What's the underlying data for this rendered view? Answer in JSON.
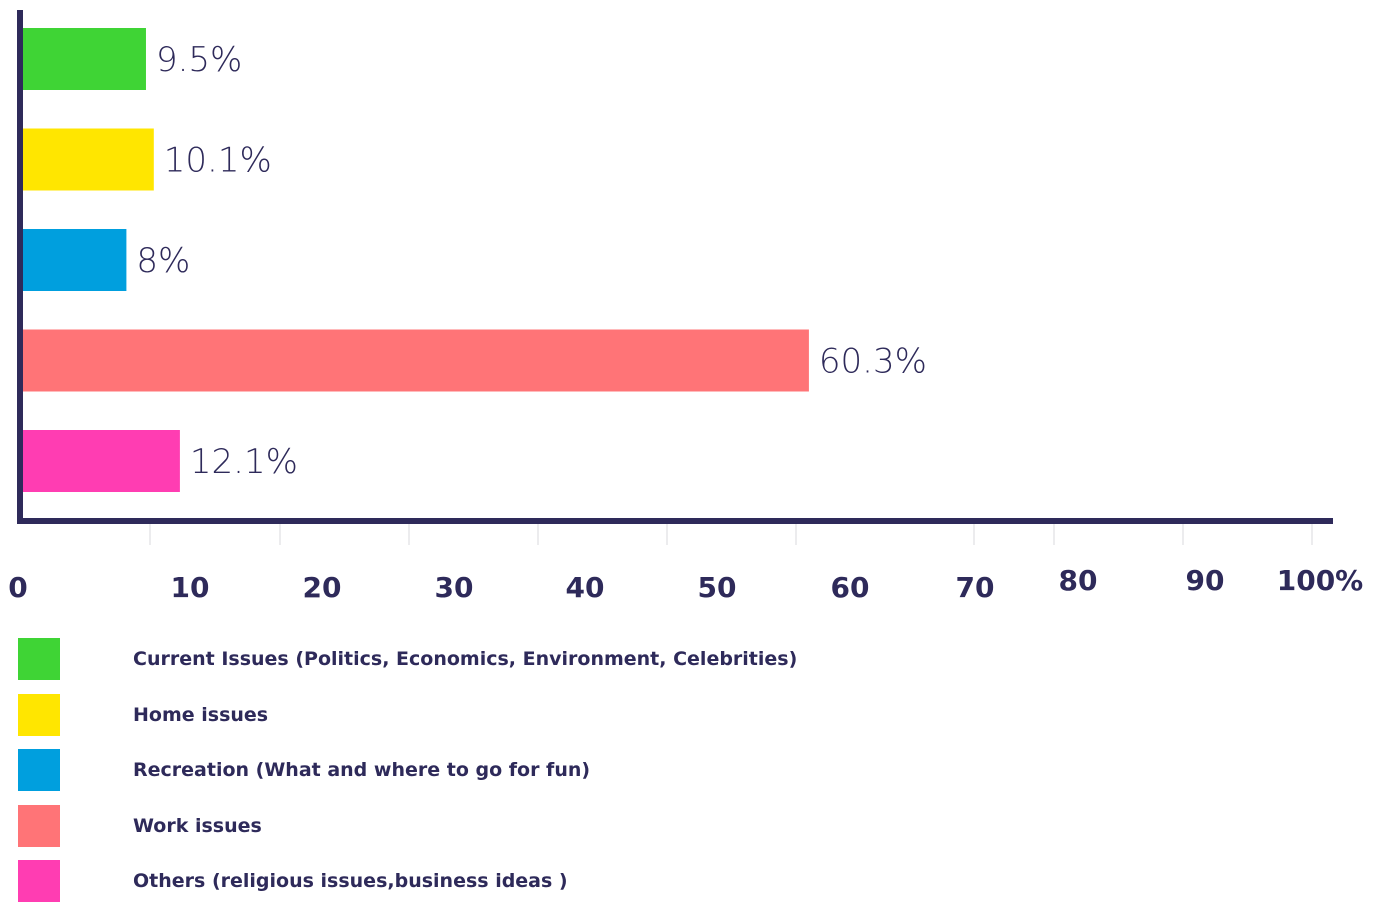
{
  "chart_data": {
    "type": "bar",
    "orientation": "horizontal",
    "categories": [
      "Current Issues (Politics, Economics, Environment, Celebrities)",
      "Home issues",
      "Recreation (What and where to go for fun)",
      "Work issues",
      "Others (religious issues,business ideas )"
    ],
    "values": [
      9.5,
      10.1,
      8,
      60.3,
      12.1
    ],
    "value_labels": [
      "9.5%",
      "10.1%",
      "8%",
      "60.3%",
      "12.1%"
    ],
    "colors": [
      "#3fd435",
      "#ffe600",
      "#009fde",
      "#ff7477",
      "#ff3db2"
    ],
    "xlim": [
      0,
      100
    ],
    "x_ticks": [
      "0",
      "10",
      "20",
      "30",
      "40",
      "50",
      "60",
      "70",
      "80",
      "90",
      "100%"
    ],
    "title": "",
    "xlabel": "",
    "ylabel": "",
    "legend_position": "bottom-left",
    "grid": false
  },
  "colors": {
    "axis": "#2e2a5a",
    "text": "#2e2a5a"
  }
}
